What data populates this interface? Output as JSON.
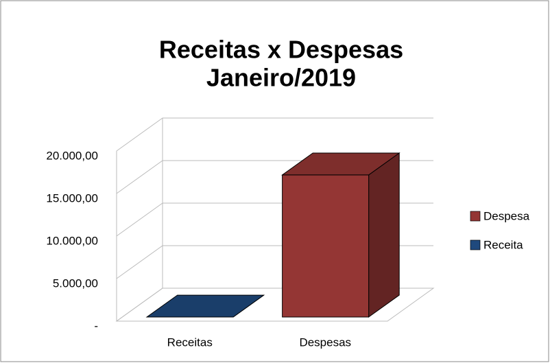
{
  "chart_data": {
    "type": "bar3d",
    "title": [
      "Receitas x Despesas",
      "Janeiro/2019"
    ],
    "categories": [
      "Receitas",
      "Despesas"
    ],
    "series": [
      {
        "name": "Despesa",
        "color": "#943634",
        "values": [
          null,
          16700
        ]
      },
      {
        "name": "Receita",
        "color": "#1f497d",
        "values": [
          0,
          null
        ]
      }
    ],
    "ylim": [
      0,
      20000
    ],
    "yticks": [
      {
        "value": 0,
        "label": "-"
      },
      {
        "value": 5000,
        "label": "5.000,00"
      },
      {
        "value": 10000,
        "label": "10.000,00"
      },
      {
        "value": 15000,
        "label": "15.000,00"
      },
      {
        "value": 20000,
        "label": "20.000,00"
      }
    ],
    "grid": true,
    "legend": "right"
  }
}
